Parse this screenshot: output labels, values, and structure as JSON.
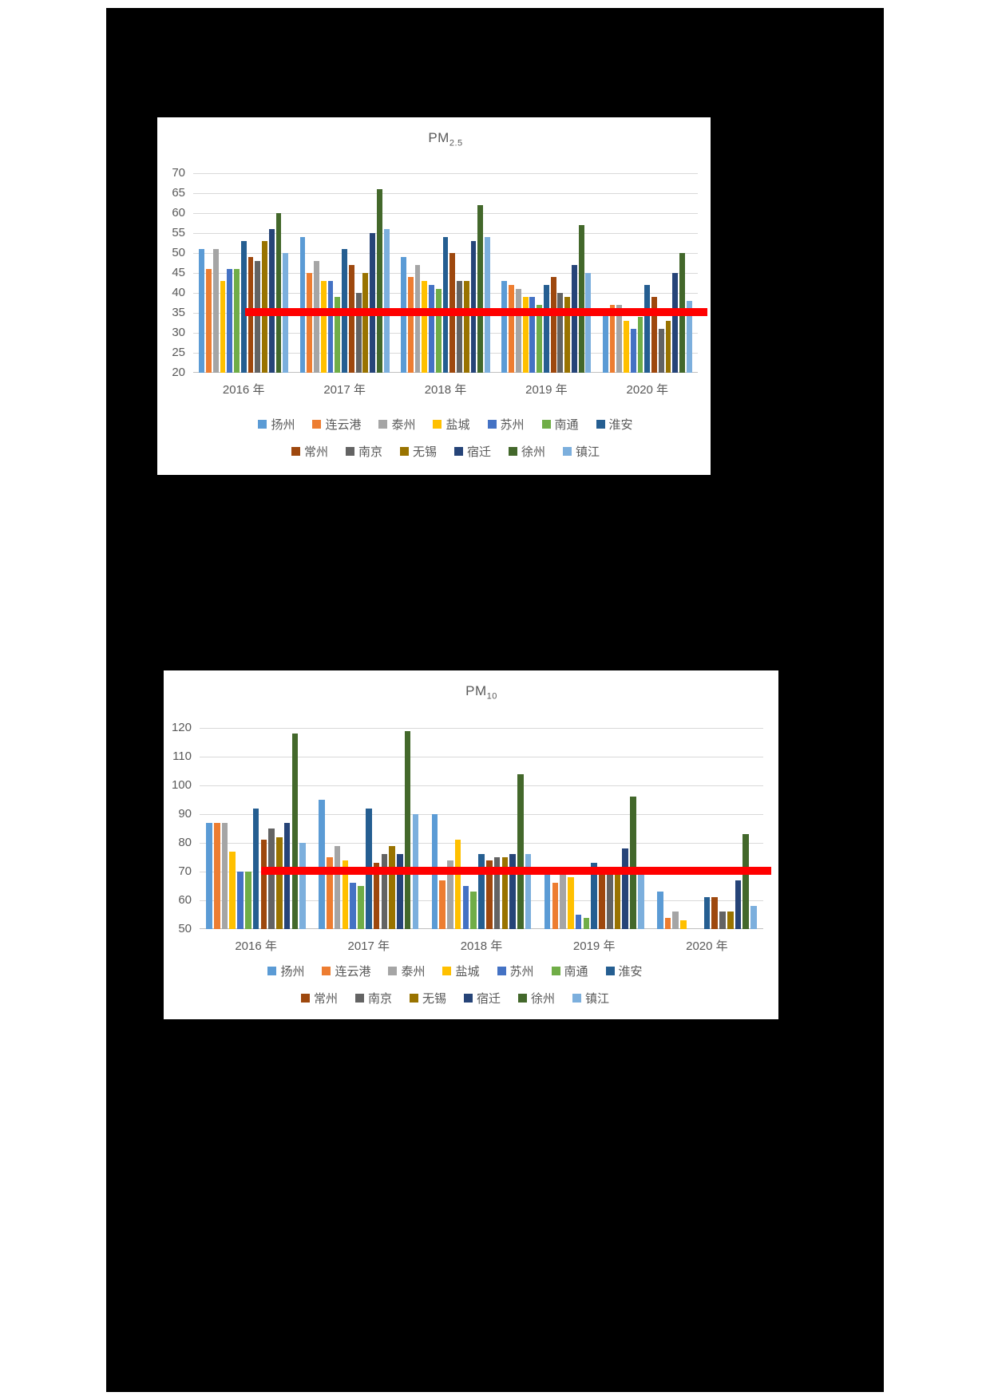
{
  "page": {
    "background_color": "#000000"
  },
  "chart_data": [
    {
      "type": "bar",
      "title": "PM2.5",
      "title_base": "PM",
      "title_sub": "2.5",
      "categories": [
        "2016 年",
        "2017 年",
        "2018 年",
        "2019 年",
        "2020 年"
      ],
      "ylim": [
        20,
        70
      ],
      "ytick_step": 5,
      "grid": true,
      "legend_position": "bottom",
      "legend_rows": [
        7,
        6
      ],
      "reference_line": {
        "value": 35,
        "color": "#FF0000"
      },
      "series": [
        {
          "name": "扬州",
          "color": "#5B9BD5",
          "values": [
            51,
            54,
            49,
            43,
            36
          ]
        },
        {
          "name": "连云港",
          "color": "#ED7D31",
          "values": [
            46,
            45,
            44,
            42,
            37
          ]
        },
        {
          "name": "泰州",
          "color": "#A5A5A5",
          "values": [
            51,
            48,
            47,
            41,
            37
          ]
        },
        {
          "name": "盐城",
          "color": "#FFC000",
          "values": [
            43,
            43,
            43,
            39,
            33
          ]
        },
        {
          "name": "苏州",
          "color": "#4472C4",
          "values": [
            46,
            43,
            42,
            39,
            31
          ]
        },
        {
          "name": "南通",
          "color": "#70AD47",
          "values": [
            46,
            39,
            41,
            37,
            34
          ]
        },
        {
          "name": "淮安",
          "color": "#255E91",
          "values": [
            53,
            51,
            54,
            42,
            42
          ]
        },
        {
          "name": "常州",
          "color": "#9E480E",
          "values": [
            49,
            47,
            50,
            44,
            39
          ]
        },
        {
          "name": "南京",
          "color": "#636363",
          "values": [
            48,
            40,
            43,
            40,
            31
          ]
        },
        {
          "name": "无锡",
          "color": "#997300",
          "values": [
            53,
            45,
            43,
            39,
            33
          ]
        },
        {
          "name": "宿迁",
          "color": "#264478",
          "values": [
            56,
            55,
            53,
            47,
            45
          ]
        },
        {
          "name": "徐州",
          "color": "#43682B",
          "values": [
            60,
            66,
            62,
            57,
            50
          ]
        },
        {
          "name": "镇江",
          "color": "#7CAFDD",
          "values": [
            50,
            56,
            54,
            45,
            38
          ]
        }
      ]
    },
    {
      "type": "bar",
      "title": "PM10",
      "title_base": "PM",
      "title_sub": "10",
      "categories": [
        "2016 年",
        "2017 年",
        "2018 年",
        "2019 年",
        "2020 年"
      ],
      "ylim": [
        50,
        120
      ],
      "ytick_step": 10,
      "grid": true,
      "legend_position": "bottom",
      "legend_rows": [
        7,
        6
      ],
      "reference_line": {
        "value": 70,
        "color": "#FF0000"
      },
      "series": [
        {
          "name": "扬州",
          "color": "#5B9BD5",
          "values": [
            87,
            95,
            90,
            70,
            63
          ]
        },
        {
          "name": "连云港",
          "color": "#ED7D31",
          "values": [
            87,
            75,
            67,
            66,
            54
          ]
        },
        {
          "name": "泰州",
          "color": "#A5A5A5",
          "values": [
            87,
            79,
            74,
            69,
            56
          ]
        },
        {
          "name": "盐城",
          "color": "#FFC000",
          "values": [
            77,
            74,
            81,
            68,
            53
          ]
        },
        {
          "name": "苏州",
          "color": "#4472C4",
          "values": [
            70,
            66,
            65,
            55,
            null
          ]
        },
        {
          "name": "南通",
          "color": "#70AD47",
          "values": [
            70,
            65,
            63,
            54,
            null
          ]
        },
        {
          "name": "淮安",
          "color": "#255E91",
          "values": [
            92,
            92,
            76,
            73,
            61
          ]
        },
        {
          "name": "常州",
          "color": "#9E480E",
          "values": [
            81,
            73,
            74,
            69,
            61
          ]
        },
        {
          "name": "南京",
          "color": "#636363",
          "values": [
            85,
            76,
            75,
            69,
            56
          ]
        },
        {
          "name": "无锡",
          "color": "#997300",
          "values": [
            82,
            79,
            75,
            69,
            56
          ]
        },
        {
          "name": "宿迁",
          "color": "#264478",
          "values": [
            87,
            76,
            76,
            78,
            67
          ]
        },
        {
          "name": "徐州",
          "color": "#43682B",
          "values": [
            118,
            119,
            104,
            96,
            83
          ]
        },
        {
          "name": "镇江",
          "color": "#7CAFDD",
          "values": [
            80,
            90,
            76,
            71,
            58
          ]
        }
      ]
    }
  ]
}
